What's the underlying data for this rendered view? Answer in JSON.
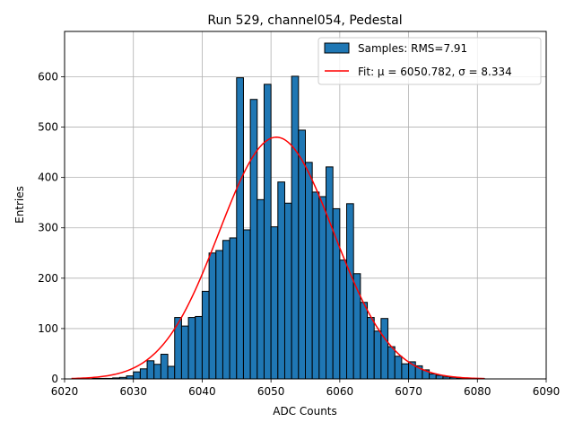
{
  "chart_data": {
    "type": "bar",
    "title": "Run 529, channel054, Pedestal",
    "xlabel": "ADC Counts",
    "ylabel": "Entries",
    "xlim": [
      6020,
      6090
    ],
    "ylim": [
      0,
      690
    ],
    "xticks": [
      "6020",
      "6030",
      "6040",
      "6050",
      "6060",
      "6070",
      "6080",
      "6090"
    ],
    "yticks": [
      "0",
      "100",
      "200",
      "300",
      "400",
      "500",
      "600"
    ],
    "grid": true,
    "legend_position": "top-right",
    "bin_width": 1,
    "bins": [
      [
        6024,
        1
      ],
      [
        6025,
        1
      ],
      [
        6026,
        1
      ],
      [
        6027,
        2
      ],
      [
        6028,
        3
      ],
      [
        6029,
        6
      ],
      [
        6030,
        14
      ],
      [
        6031,
        20
      ],
      [
        6032,
        36
      ],
      [
        6033,
        29
      ],
      [
        6034,
        49
      ],
      [
        6035,
        25
      ],
      [
        6036,
        122
      ],
      [
        6037,
        105
      ],
      [
        6038,
        122
      ],
      [
        6039,
        124
      ],
      [
        6040,
        174
      ],
      [
        6041,
        250
      ],
      [
        6042,
        255
      ],
      [
        6043,
        275
      ],
      [
        6044,
        280
      ],
      [
        6045,
        598
      ],
      [
        6046,
        296
      ],
      [
        6047,
        555
      ],
      [
        6048,
        356
      ],
      [
        6049,
        585
      ],
      [
        6050,
        302
      ],
      [
        6051,
        391
      ],
      [
        6052,
        349
      ],
      [
        6053,
        601
      ],
      [
        6054,
        494
      ],
      [
        6055,
        430
      ],
      [
        6056,
        371
      ],
      [
        6057,
        362
      ],
      [
        6058,
        421
      ],
      [
        6059,
        338
      ],
      [
        6060,
        236
      ],
      [
        6061,
        348
      ],
      [
        6062,
        209
      ],
      [
        6063,
        152
      ],
      [
        6064,
        122
      ],
      [
        6065,
        95
      ],
      [
        6066,
        120
      ],
      [
        6067,
        64
      ],
      [
        6068,
        45
      ],
      [
        6069,
        30
      ],
      [
        6070,
        34
      ],
      [
        6071,
        26
      ],
      [
        6072,
        18
      ],
      [
        6073,
        10
      ],
      [
        6074,
        7
      ],
      [
        6075,
        4
      ],
      [
        6076,
        3
      ],
      [
        6077,
        2
      ],
      [
        6078,
        1
      ],
      [
        6079,
        1
      ],
      [
        6080,
        1
      ]
    ],
    "series": [
      {
        "name": "Samples: RMS=7.91",
        "kind": "histogram",
        "color": "#1f77b4"
      },
      {
        "name": "Fit: μ = 6050.782, σ = 8.334",
        "kind": "gaussian",
        "color": "#ff0000",
        "mu": 6050.782,
        "sigma": 8.334,
        "amplitude": 480,
        "x_range": [
          6021,
          6081
        ]
      }
    ]
  }
}
